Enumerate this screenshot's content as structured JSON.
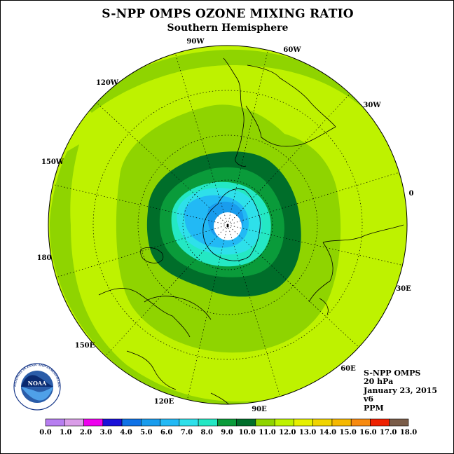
{
  "title": "S-NPP OMPS OZONE MIXING RATIO",
  "subtitle": "Southern Hemisphere",
  "info": {
    "instrument": "S-NPP OMPS",
    "level": "20 hPa",
    "date": "January 23, 2015",
    "version": "v6",
    "units": "PPM"
  },
  "longitude_labels": [
    "90W",
    "60W",
    "30W",
    "0",
    "30E",
    "60E",
    "90E",
    "120E",
    "150E",
    "180",
    "150W",
    "120W"
  ],
  "logo": {
    "name": "NOAA",
    "ring_text": "NATIONAL OCEANIC AND ATMOSPHERIC ADMINISTRATION · U.S. DEPARTMENT OF COMMERCE"
  },
  "colorbar": {
    "ticks": [
      "0.0",
      "1.0",
      "2.0",
      "3.0",
      "4.0",
      "5.0",
      "6.0",
      "7.0",
      "8.0",
      "9.0",
      "10.0",
      "11.0",
      "12.0",
      "13.0",
      "14.0",
      "15.0",
      "16.0",
      "17.0",
      "18.0"
    ],
    "colors": [
      "#b77ef0",
      "#da9de8",
      "#ee00ee",
      "#1a10d8",
      "#0f72e6",
      "#199ced",
      "#22b9f5",
      "#2ee0ea",
      "#24e8c4",
      "#0a9b3a",
      "#006e2a",
      "#8fd400",
      "#bef200",
      "#e6f000",
      "#f0d400",
      "#f5b800",
      "#f78a10",
      "#ee2000",
      "#7a5c48"
    ]
  },
  "ozone_contours": {
    "levels": [
      11,
      10,
      9,
      8,
      7,
      6,
      5
    ],
    "colors": [
      "#8fd400",
      "#006e2a",
      "#0a9b3a",
      "#24e8c4",
      "#2ee0ea",
      "#22b9f5",
      "#199ced"
    ],
    "background_color": "#bef200",
    "pole_color": "#ffffff"
  }
}
